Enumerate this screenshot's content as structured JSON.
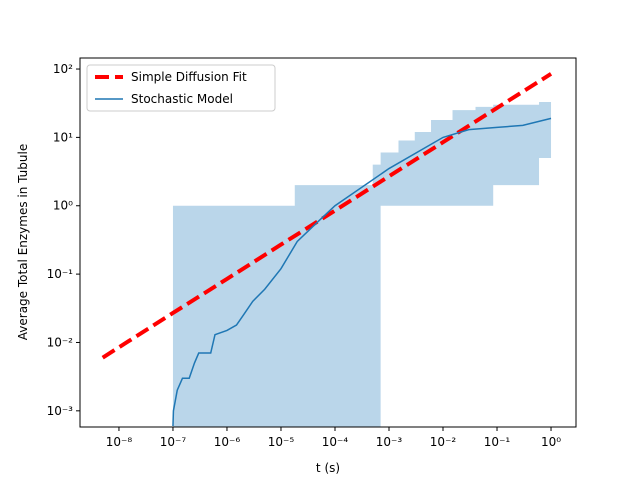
{
  "chart_data": {
    "type": "line",
    "xlabel": "t (s)",
    "ylabel": "Average Total Enzymes in Tubule",
    "xscale": "log",
    "yscale": "log",
    "xlim": [
      1.9e-09,
      2.9
    ],
    "ylim": [
      0.00058,
      145
    ],
    "xticks": [
      {
        "value": 1e-08,
        "label": "10⁻⁸"
      },
      {
        "value": 1e-07,
        "label": "10⁻⁷"
      },
      {
        "value": 1e-06,
        "label": "10⁻⁶"
      },
      {
        "value": 1e-05,
        "label": "10⁻⁵"
      },
      {
        "value": 0.0001,
        "label": "10⁻⁴"
      },
      {
        "value": 0.001,
        "label": "10⁻³"
      },
      {
        "value": 0.01,
        "label": "10⁻²"
      },
      {
        "value": 0.1,
        "label": "10⁻¹"
      },
      {
        "value": 1,
        "label": "10⁰"
      }
    ],
    "yticks": [
      {
        "value": 0.001,
        "label": "10⁻³"
      },
      {
        "value": 0.01,
        "label": "10⁻²"
      },
      {
        "value": 0.1,
        "label": "10⁻¹"
      },
      {
        "value": 1,
        "label": "10⁰"
      },
      {
        "value": 10,
        "label": "10¹"
      },
      {
        "value": 100,
        "label": "10²"
      }
    ],
    "legend": "upper left",
    "band": {
      "color": "#bad6ea",
      "x": [
        1e-07,
        1.8e-05,
        1.8e-05,
        0.0005,
        0.0005,
        0.0007,
        0.0007,
        0.0015,
        0.0015,
        0.003,
        0.003,
        0.006,
        0.006,
        0.015,
        0.015,
        0.04,
        0.04,
        0.085,
        0.085,
        0.6,
        0.6,
        1
      ],
      "lower": [
        0,
        0,
        0,
        0,
        0,
        0,
        1,
        1,
        1,
        1,
        1,
        1,
        1,
        1,
        1,
        1,
        1,
        1,
        2,
        2,
        5,
        5
      ],
      "upper": [
        1,
        1,
        2,
        2,
        4,
        4,
        6,
        6,
        9,
        9,
        12,
        12,
        18,
        18,
        25,
        25,
        28,
        28,
        30,
        30,
        33,
        33
      ]
    },
    "series": [
      {
        "name": "Simple Diffusion Fit",
        "color": "#ff0000",
        "dash": true,
        "x": [
          5e-09,
          1e-08,
          1e-07,
          1e-06,
          1e-05,
          0.0001,
          0.001,
          0.01,
          0.1,
          1
        ],
        "values": [
          0.006,
          0.0085,
          0.027,
          0.085,
          0.27,
          0.85,
          2.7,
          8.5,
          27,
          85
        ]
      },
      {
        "name": "Stochastic Model",
        "color": "#1f77b4",
        "dash": false,
        "x": [
          1e-07,
          1.02e-07,
          1.2e-07,
          1.5e-07,
          2e-07,
          2.5e-07,
          3e-07,
          5e-07,
          6e-07,
          1e-06,
          1.5e-06,
          2e-06,
          3e-06,
          5e-06,
          1e-05,
          2e-05,
          5e-05,
          0.0001,
          0.001,
          0.01,
          0.03,
          0.1,
          0.3,
          1
        ],
        "values": [
          0.0006,
          0.001,
          0.002,
          0.003,
          0.003,
          0.005,
          0.007,
          0.007,
          0.013,
          0.015,
          0.018,
          0.025,
          0.04,
          0.06,
          0.12,
          0.3,
          0.6,
          1.0,
          3.5,
          10,
          13,
          14,
          15,
          19
        ]
      }
    ]
  }
}
